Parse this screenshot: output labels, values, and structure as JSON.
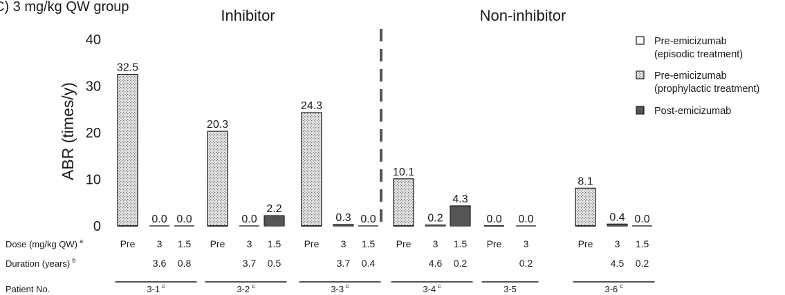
{
  "chart_data": {
    "type": "bar",
    "panel_title": "C) 3 mg/kg QW group",
    "group_titles": [
      {
        "label": "Inhibitor",
        "patients": [
          0,
          1,
          2
        ]
      },
      {
        "label": "Non-inhibitor",
        "patients": [
          3,
          4,
          5
        ]
      }
    ],
    "ylabel": "ABR (times/y)",
    "ylim": [
      0,
      40
    ],
    "yticks": [
      0,
      10,
      20,
      30,
      40
    ],
    "grid": false,
    "legend_position": "right",
    "legend": [
      {
        "key": "pre_episodic",
        "label_lines": [
          "Pre-emicizumab",
          "(episodic treatment)"
        ]
      },
      {
        "key": "pre_prophylactic",
        "label_lines": [
          "Pre-emicizumab",
          "(prophylactic treatment)"
        ]
      },
      {
        "key": "post",
        "label_lines": [
          "Post-emicizumab"
        ]
      }
    ],
    "colors": {
      "post_fill": "#555555",
      "outline": "#1a1a1a",
      "dotted_fill": "#e6e6e6",
      "dashed_divider": "#555555"
    },
    "row_labels": {
      "dose": {
        "text": "Dose (mg/kg QW)",
        "sup": "a"
      },
      "duration": {
        "text": "Duration (years)",
        "sup": "b"
      },
      "patient": {
        "text": "Patient No.",
        "sup": ""
      }
    },
    "patients": [
      {
        "id": "3-1",
        "sup": "c",
        "bars": [
          {
            "dose": "Pre",
            "duration": "",
            "value": 32.5,
            "label": "32.5",
            "kind": "pre_prophylactic"
          },
          {
            "dose": "3",
            "duration": "3.6",
            "value": 0.0,
            "label": "0.0",
            "kind": "post"
          },
          {
            "dose": "1.5",
            "duration": "0.8",
            "value": 0.0,
            "label": "0.0",
            "kind": "post"
          }
        ]
      },
      {
        "id": "3-2",
        "sup": "c",
        "bars": [
          {
            "dose": "Pre",
            "duration": "",
            "value": 20.3,
            "label": "20.3",
            "kind": "pre_prophylactic"
          },
          {
            "dose": "3",
            "duration": "3.7",
            "value": 0.0,
            "label": "0.0",
            "kind": "post"
          },
          {
            "dose": "1.5",
            "duration": "0.5",
            "value": 2.2,
            "label": "2.2",
            "kind": "post"
          }
        ]
      },
      {
        "id": "3-3",
        "sup": "c",
        "bars": [
          {
            "dose": "Pre",
            "duration": "",
            "value": 24.3,
            "label": "24.3",
            "kind": "pre_prophylactic"
          },
          {
            "dose": "3",
            "duration": "3.7",
            "value": 0.3,
            "label": "0.3",
            "kind": "post"
          },
          {
            "dose": "1.5",
            "duration": "0.4",
            "value": 0.0,
            "label": "0.0",
            "kind": "post"
          }
        ]
      },
      {
        "id": "3-4",
        "sup": "c",
        "bars": [
          {
            "dose": "Pre",
            "duration": "",
            "value": 10.1,
            "label": "10.1",
            "kind": "pre_prophylactic"
          },
          {
            "dose": "3",
            "duration": "4.6",
            "value": 0.2,
            "label": "0.2",
            "kind": "post"
          },
          {
            "dose": "1.5",
            "duration": "0.2",
            "value": 4.3,
            "label": "4.3",
            "kind": "post"
          }
        ]
      },
      {
        "id": "3-5",
        "sup": "",
        "bars": [
          {
            "dose": "Pre",
            "duration": "",
            "value": 0.0,
            "label": "0.0",
            "kind": "pre_prophylactic"
          },
          {
            "dose": "3",
            "duration": "0.2",
            "value": 0.0,
            "label": "0.0",
            "kind": "post"
          }
        ]
      },
      {
        "id": "3-6",
        "sup": "c",
        "bars": [
          {
            "dose": "Pre",
            "duration": "",
            "value": 8.1,
            "label": "8.1",
            "kind": "pre_prophylactic"
          },
          {
            "dose": "3",
            "duration": "4.5",
            "value": 0.4,
            "label": "0.4",
            "kind": "post"
          },
          {
            "dose": "1.5",
            "duration": "0.2",
            "value": 0.0,
            "label": "0.0",
            "kind": "post"
          }
        ]
      }
    ]
  }
}
